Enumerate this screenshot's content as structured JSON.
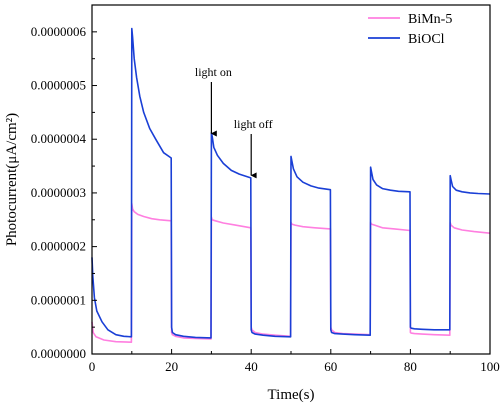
{
  "chart_data": {
    "type": "line",
    "xlabel": "Time(s)",
    "ylabel": "Photocurrent(μA/cm²)",
    "xlim": [
      0,
      100
    ],
    "ylim": [
      0,
      6.5e-07
    ],
    "x_ticks": [
      0,
      20,
      40,
      60,
      80,
      100
    ],
    "x_tick_labels": [
      "0",
      "20",
      "40",
      "60",
      "80",
      "100"
    ],
    "y_ticks": [
      0,
      1e-07,
      2e-07,
      3e-07,
      4e-07,
      5e-07,
      6e-07
    ],
    "y_tick_labels": [
      "0.0000000",
      "0.0000001",
      "0.0000002",
      "0.0000003",
      "0.0000004",
      "0.0000005",
      "0.0000006"
    ],
    "legend_position": "top-right",
    "grid": false,
    "annotations": [
      {
        "text": "light on",
        "x": 30,
        "y": 4.05e-07
      },
      {
        "text": "light off",
        "x": 40,
        "y": 3.27e-07
      }
    ],
    "series": [
      {
        "name": "BiMn-5",
        "color": "#ff7fe0",
        "x": [
          0,
          0.3,
          1,
          3,
          6,
          9.9,
          10,
          10.2,
          10.6,
          11.5,
          13,
          15,
          17,
          19.9,
          20,
          20.2,
          21,
          23,
          26,
          29.9,
          30,
          30.2,
          31,
          33,
          36,
          39.9,
          40,
          40.2,
          41,
          43,
          46,
          49.9,
          50,
          50.2,
          51,
          53,
          56,
          59.9,
          60,
          60.2,
          61,
          63,
          66,
          69.9,
          70,
          70.2,
          71,
          73,
          76,
          79.9,
          80,
          80.2,
          81,
          83,
          86,
          89.9,
          90,
          90.2,
          91,
          93,
          96,
          100
        ],
        "y": [
          6e-08,
          4e-08,
          3.2e-08,
          2.6e-08,
          2.3e-08,
          2.2e-08,
          2.8e-07,
          2.7e-07,
          2.65e-07,
          2.6e-07,
          2.56e-07,
          2.52e-07,
          2.5e-07,
          2.48e-07,
          4e-08,
          3.6e-08,
          3.3e-08,
          3e-08,
          2.9e-08,
          2.8e-08,
          2.55e-07,
          2.5e-07,
          2.48e-07,
          2.44e-07,
          2.4e-07,
          2.35e-07,
          5e-08,
          4.5e-08,
          4e-08,
          3.7e-08,
          3.5e-08,
          3.3e-08,
          2.45e-07,
          2.42e-07,
          2.4e-07,
          2.37e-07,
          2.35e-07,
          2.33e-07,
          5e-08,
          4.5e-08,
          4e-08,
          3.8e-08,
          3.7e-08,
          3.6e-08,
          2.45e-07,
          2.42e-07,
          2.4e-07,
          2.35e-07,
          2.33e-07,
          2.3e-07,
          4e-08,
          3.9e-08,
          3.8e-08,
          3.7e-08,
          3.6e-08,
          3.5e-08,
          2.45e-07,
          2.4e-07,
          2.35e-07,
          2.31e-07,
          2.28e-07,
          2.25e-07
        ]
      },
      {
        "name": "BiOCl",
        "color": "#1a3fd6",
        "x": [
          0,
          0.2,
          0.6,
          1.2,
          2.5,
          4,
          6,
          8,
          9.9,
          10,
          10.2,
          10.6,
          11.2,
          12,
          13,
          14.5,
          16,
          18,
          19.9,
          20,
          20.2,
          21,
          23,
          26,
          29.9,
          30,
          30.2,
          30.6,
          31.5,
          33,
          35,
          37,
          39.9,
          40,
          40.2,
          41,
          43,
          46,
          49.9,
          50,
          50.2,
          50.6,
          51.5,
          53,
          55,
          57,
          59.9,
          60,
          60.2,
          61,
          63,
          66,
          69.9,
          70,
          70.2,
          70.6,
          71.5,
          73,
          75,
          77,
          79.9,
          80,
          80.2,
          81,
          83,
          86,
          89.9,
          90,
          90.2,
          90.6,
          91.5,
          93,
          95,
          97,
          100
        ],
        "y": [
          1.8e-07,
          1.45e-07,
          1.05e-07,
          8e-08,
          6e-08,
          4.5e-08,
          3.6e-08,
          3.3e-08,
          3.2e-08,
          6.06e-07,
          5.9e-07,
          5.5e-07,
          5.15e-07,
          4.8e-07,
          4.5e-07,
          4.2e-07,
          4e-07,
          3.75e-07,
          3.65e-07,
          5e-08,
          4e-08,
          3.6e-08,
          3.3e-08,
          3.1e-08,
          3e-08,
          4.12e-07,
          4.05e-07,
          3.85e-07,
          3.7e-07,
          3.55e-07,
          3.42e-07,
          3.35e-07,
          3.28e-07,
          4.5e-08,
          4e-08,
          3.7e-08,
          3.5e-08,
          3.3e-08,
          3.2e-08,
          3.68e-07,
          3.6e-07,
          3.45e-07,
          3.3e-07,
          3.2e-07,
          3.13e-07,
          3.09e-07,
          3.06e-07,
          4.5e-08,
          4e-08,
          3.8e-08,
          3.7e-08,
          3.6e-08,
          3.5e-08,
          3.48e-07,
          3.4e-07,
          3.25e-07,
          3.15e-07,
          3.08e-07,
          3.05e-07,
          3.03e-07,
          3.02e-07,
          5e-08,
          4.8e-08,
          4.7e-08,
          4.6e-08,
          4.5e-08,
          4.5e-08,
          3.32e-07,
          3.25e-07,
          3.12e-07,
          3.05e-07,
          3.02e-07,
          3e-07,
          2.99e-07,
          2.98e-07
        ]
      }
    ]
  }
}
